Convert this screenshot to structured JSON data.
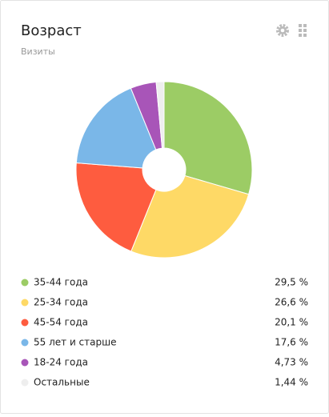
{
  "chart_data": {
    "type": "pie",
    "title": "Возраст",
    "subtitle": "Визиты",
    "categories": [
      "35-44 года",
      "25-34 года",
      "45-54 года",
      "55 лет и старше",
      "18-24 года",
      "Остальные"
    ],
    "values": [
      29.5,
      26.6,
      20.1,
      17.6,
      4.73,
      1.44
    ],
    "value_labels": [
      "29,5 %",
      "26,6 %",
      "20,1 %",
      "17,6 %",
      "4,73 %",
      "1,44 %"
    ],
    "colors": [
      "#9ccc65",
      "#fed966",
      "#fe5c3f",
      "#7ab7e8",
      "#a855b8",
      "#eeeeee"
    ]
  }
}
